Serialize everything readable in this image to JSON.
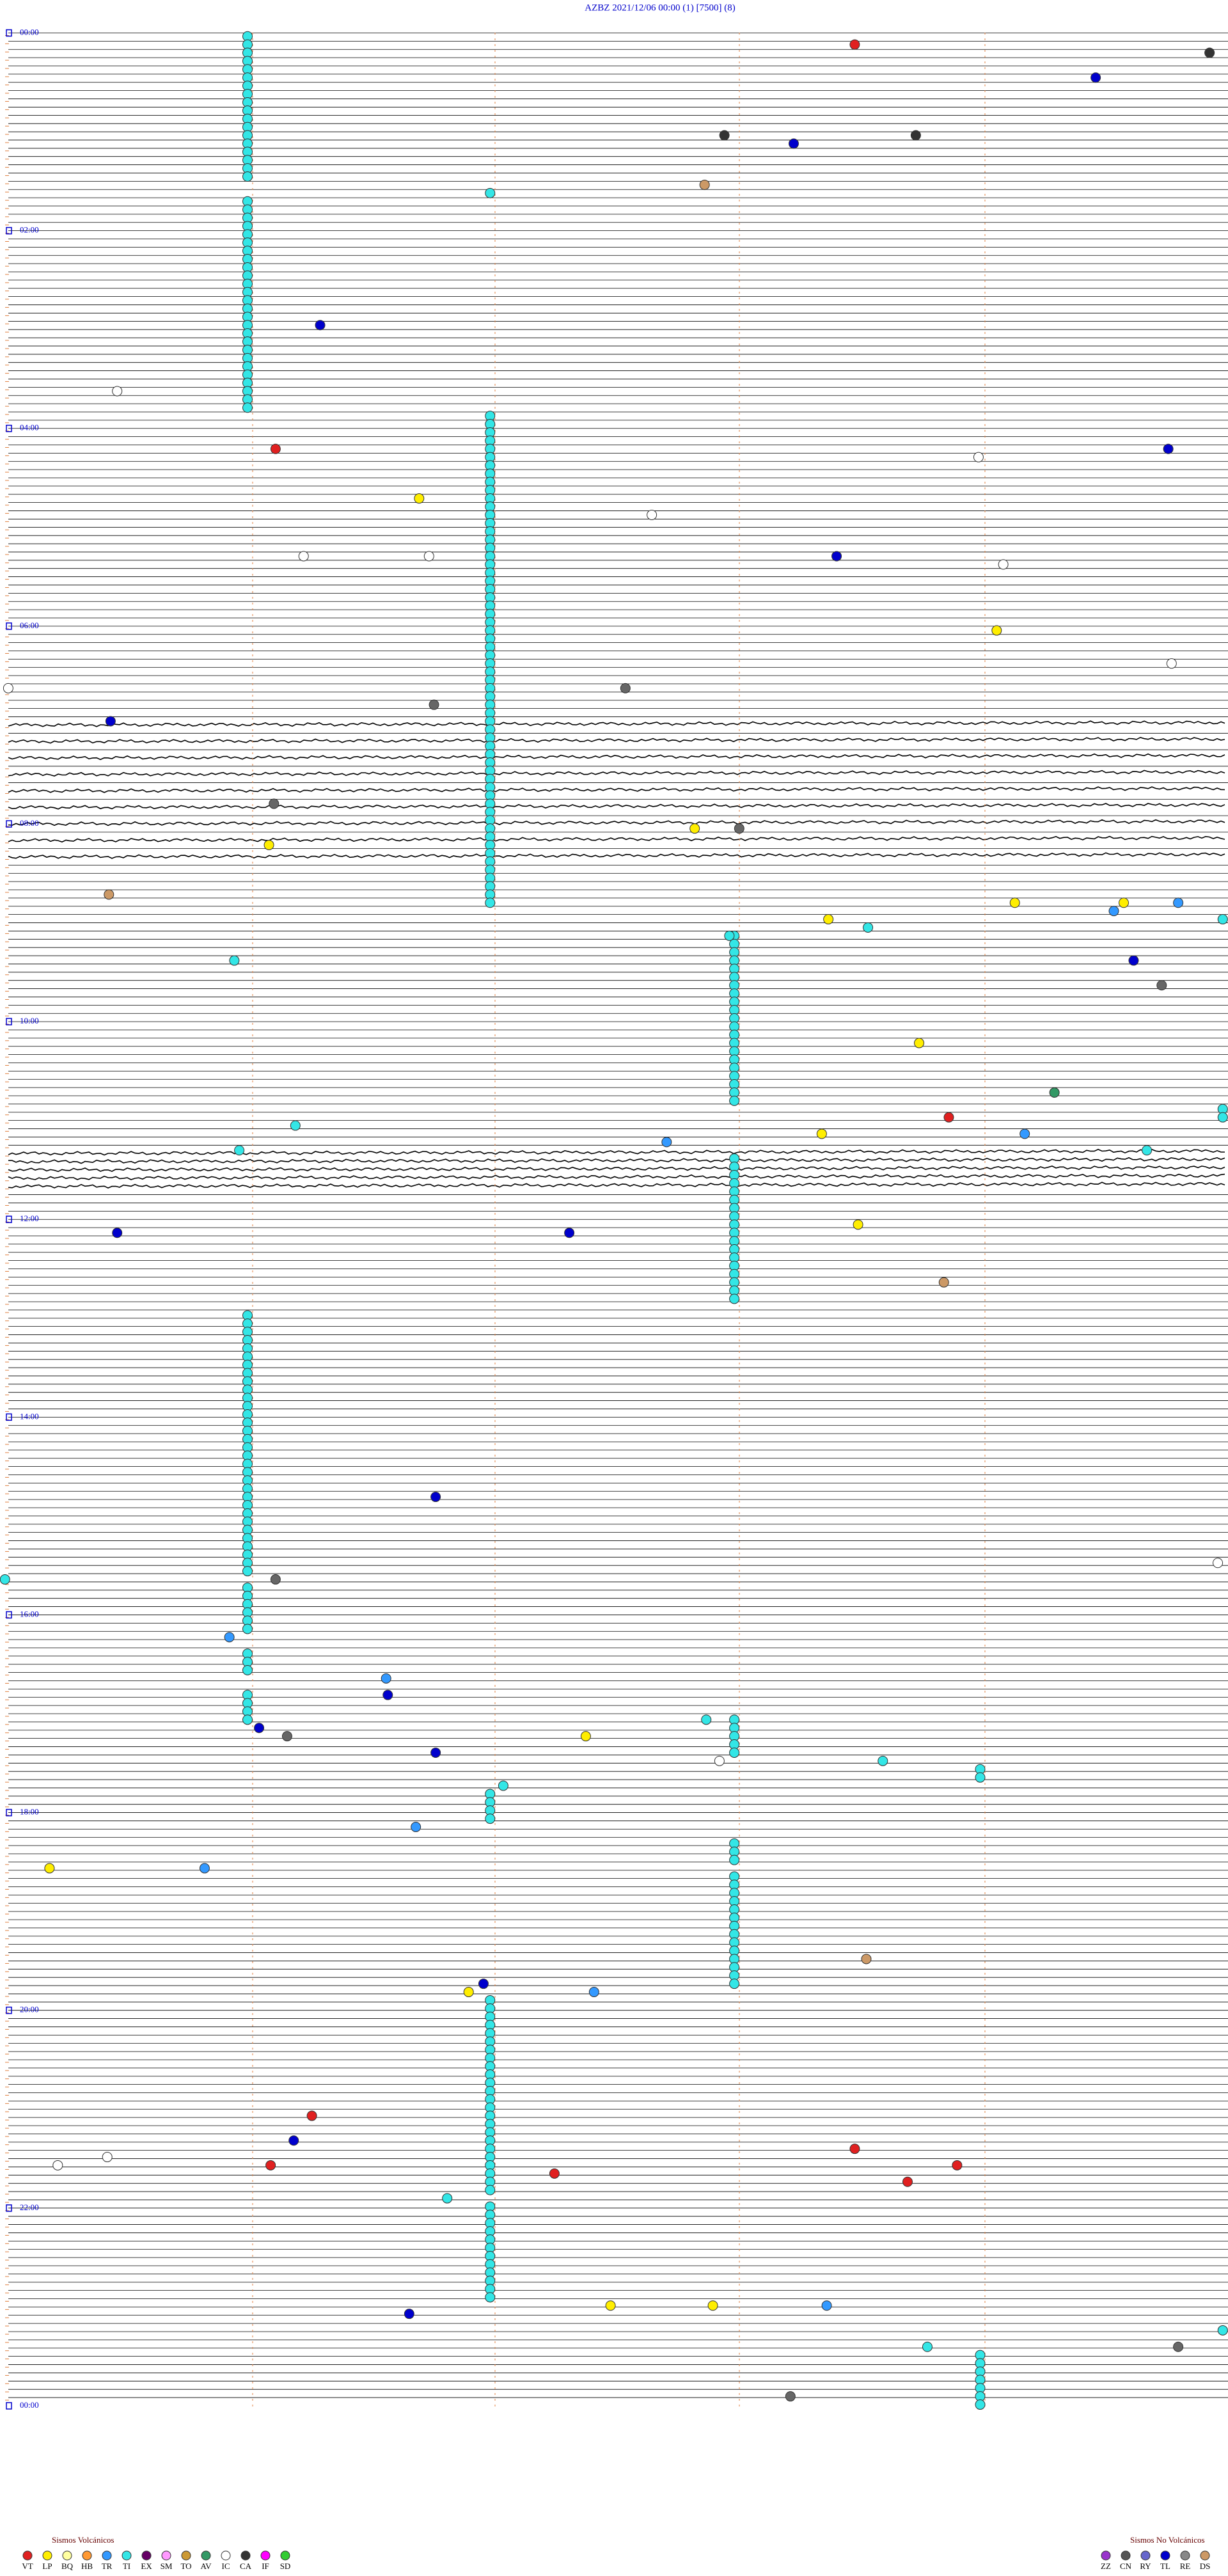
{
  "header": {
    "title": "AZBZ    2021/12/06 00:00    (1)    [7500]  (8)"
  },
  "hour_labels": [
    "00:00",
    "02:00",
    "04:00",
    "06:00",
    "08:00",
    "10:00",
    "12:00",
    "14:00",
    "16:00",
    "18:00",
    "20:00",
    "22:00",
    "00:00"
  ],
  "legend": {
    "volcanic": {
      "title": "Sismos Volcánicos",
      "items": [
        {
          "code": "VT",
          "color": "#e02020"
        },
        {
          "code": "LP",
          "color": "#ffee00"
        },
        {
          "code": "BQ",
          "color": "#ffffa0"
        },
        {
          "code": "HB",
          "color": "#ff9933"
        },
        {
          "code": "TR",
          "color": "#3399ff"
        },
        {
          "code": "TI",
          "color": "#33e6e6"
        },
        {
          "code": "EX",
          "color": "#660066"
        },
        {
          "code": "SM",
          "color": "#ff99ff"
        },
        {
          "code": "TO",
          "color": "#cc9933"
        },
        {
          "code": "AV",
          "color": "#339966"
        },
        {
          "code": "IC",
          "color": "#ffffff"
        },
        {
          "code": "CA",
          "color": "#333333"
        },
        {
          "code": "IF",
          "color": "#ff00ff"
        },
        {
          "code": "SD",
          "color": "#33cc33"
        }
      ]
    },
    "non_volcanic": {
      "title": "Sismos No Volcánicos",
      "items": [
        {
          "code": "ZZ",
          "color": "#9933cc"
        },
        {
          "code": "CN",
          "color": "#555555"
        },
        {
          "code": "RY",
          "color": "#6666cc"
        },
        {
          "code": "TL",
          "color": "#0000cc"
        },
        {
          "code": "RE",
          "color": "#888888"
        },
        {
          "code": "DS",
          "color": "#cc9966"
        }
      ]
    }
  }
}
